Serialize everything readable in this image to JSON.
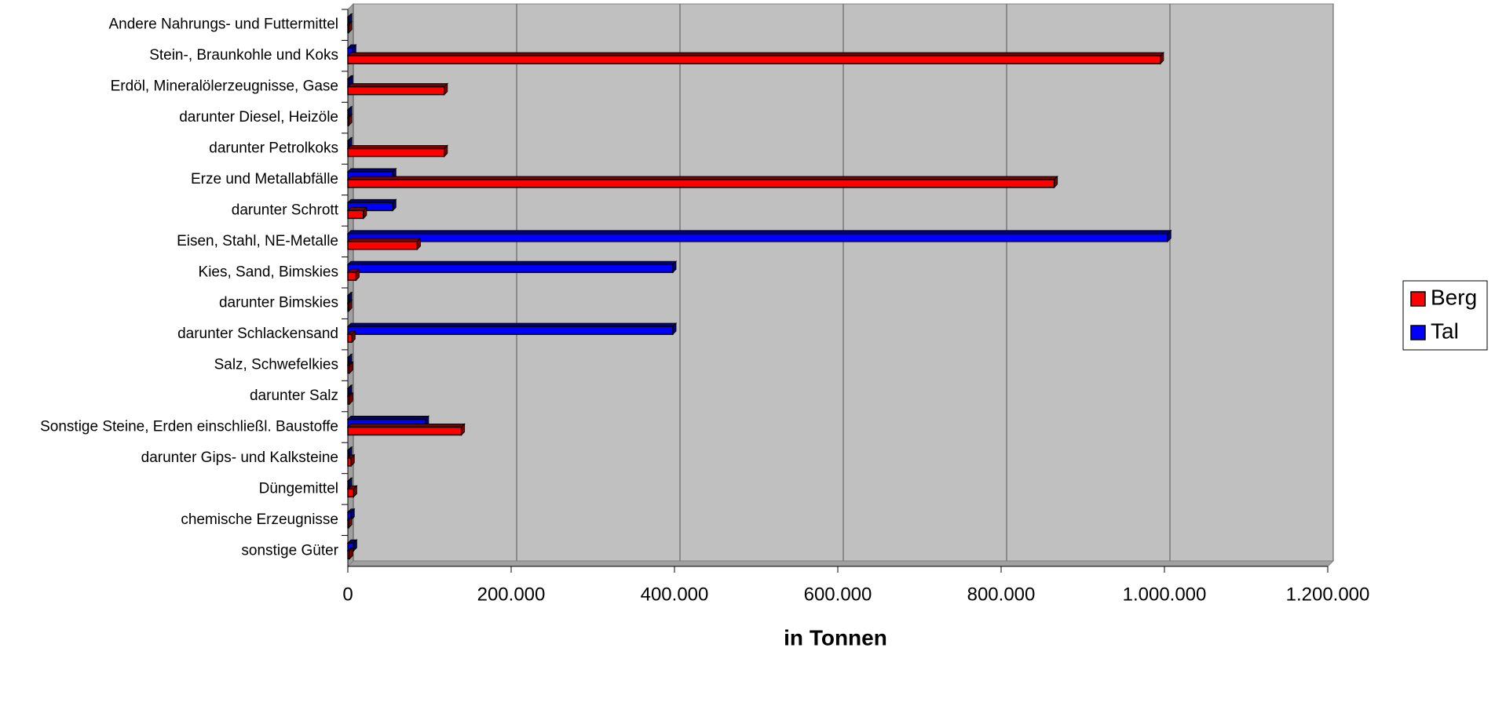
{
  "chart_data": {
    "type": "bar",
    "orientation": "horizontal",
    "x_label": "in Tonnen",
    "categories": [
      "Andere Nahrungs- und Futtermittel",
      "Stein-, Braunkohle und Koks",
      "Erdöl, Mineralölerzeugnisse, Gase",
      "darunter Diesel, Heizöle",
      "darunter Petrolkoks",
      "Erze und Metallabfälle",
      "darunter Schrott",
      "Eisen, Stahl, NE-Metalle",
      "Kies, Sand, Bimskies",
      "darunter Bimskies",
      "darunter Schlackensand",
      "Salz, Schwefelkies",
      "darunter Salz",
      "Sonstige Steine, Erden einschließl. Baustoffe",
      "darunter Gips- und Kalksteine",
      "Düngemittel",
      "chemische Erzeugnisse",
      "sonstige Güter"
    ],
    "series": [
      {
        "name": "Berg",
        "color": "#ff0000",
        "values": [
          1000,
          995000,
          118000,
          1000,
          118000,
          865000,
          19000,
          85000,
          10000,
          1000,
          5000,
          2000,
          2000,
          139000,
          4000,
          7000,
          1000,
          2000
        ]
      },
      {
        "name": "Tal",
        "color": "#0000ff",
        "values": [
          1000,
          6000,
          2000,
          1000,
          1000,
          55000,
          55000,
          1004000,
          398000,
          1000,
          398000,
          1000,
          1000,
          95000,
          1000,
          1000,
          4000,
          7000
        ]
      }
    ],
    "xlim": [
      0,
      1200000
    ],
    "xticks": [
      0,
      {
        "value": 200000,
        "label": "200.000"
      },
      {
        "value": 400000,
        "label": "400.000"
      },
      {
        "value": 600000,
        "label": "600.000"
      },
      {
        "value": 800000,
        "label": "800.000"
      },
      {
        "value": 1000000,
        "label": "1.000.000"
      },
      {
        "value": 1200000,
        "label": "1.200.000"
      }
    ],
    "grid": true,
    "legend": "right"
  }
}
